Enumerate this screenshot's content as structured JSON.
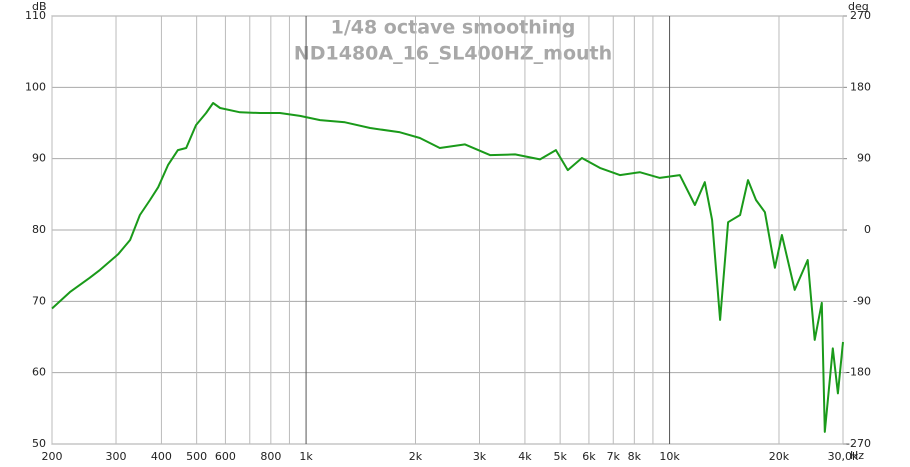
{
  "chart_data": {
    "type": "line",
    "title": "1/48 octave smoothing",
    "subtitle": "ND1480A_16_SL400HZ_mouth",
    "y_unit": "dB",
    "y2_unit": "deg",
    "x_unit": "Hz",
    "xlog": true,
    "grid": true,
    "xlim": [
      200,
      30000
    ],
    "xticks": [
      200,
      300,
      400,
      500,
      600,
      800,
      {
        "value": 1000,
        "label": "1k"
      },
      {
        "value": 2000,
        "label": "2k"
      },
      {
        "value": 3000,
        "label": "3k"
      },
      {
        "value": 4000,
        "label": "4k"
      },
      {
        "value": 5000,
        "label": "5k"
      },
      {
        "value": 6000,
        "label": "6k"
      },
      {
        "value": 7000,
        "label": "7k"
      },
      {
        "value": 8000,
        "label": "8k"
      },
      {
        "value": 10000,
        "label": "10k"
      },
      {
        "value": 20000,
        "label": "20k"
      },
      {
        "value": 30000,
        "label": "30,0k"
      }
    ],
    "xgrid_minor": [
      700,
      900,
      9000
    ],
    "xgrid_major": [
      1000,
      10000
    ],
    "ylim": [
      50,
      110
    ],
    "yticks": [
      50,
      60,
      70,
      80,
      90,
      100,
      110
    ],
    "y2lim": [
      -270,
      270
    ],
    "y2ticks": [
      -270,
      -180,
      -90,
      0,
      90,
      180,
      270
    ],
    "series": [
      {
        "name": "ND1480A_16_SL400HZ_mouth",
        "color": "#1a9a1a",
        "x": [
          200,
          224,
          254,
          271,
          304,
          328,
          349,
          372,
          392,
          417,
          444,
          468,
          498,
          531,
          555,
          580,
          658,
          747,
          847,
          962,
          1093,
          1280,
          1500,
          1813,
          2056,
          2333,
          2736,
          3206,
          3758,
          4400,
          4866,
          5250,
          5737,
          6430,
          7300,
          8280,
          9400,
          10670,
          11740,
          12500,
          13090,
          13770,
          14490,
          15630,
          16430,
          17290,
          18290,
          19490,
          20370,
          22090,
          23990,
          25070,
          26230,
          26740,
          28120,
          29040,
          30000
        ],
        "values": [
          69.0,
          71.3,
          73.3,
          74.4,
          76.6,
          78.6,
          82.1,
          84.2,
          86.0,
          89.1,
          91.2,
          91.5,
          94.7,
          96.4,
          97.8,
          97.1,
          96.5,
          96.4,
          96.4,
          96.0,
          95.4,
          95.1,
          94.3,
          93.7,
          92.9,
          91.5,
          92.0,
          90.5,
          90.6,
          89.9,
          91.2,
          88.4,
          90.1,
          88.7,
          87.7,
          88.1,
          87.3,
          87.7,
          83.5,
          86.7,
          81.4,
          67.4,
          81.1,
          82.1,
          87.0,
          84.2,
          82.5,
          74.7,
          79.3,
          71.6,
          75.8,
          64.6,
          69.8,
          51.7,
          63.4,
          57.1,
          64.3
        ]
      }
    ]
  }
}
